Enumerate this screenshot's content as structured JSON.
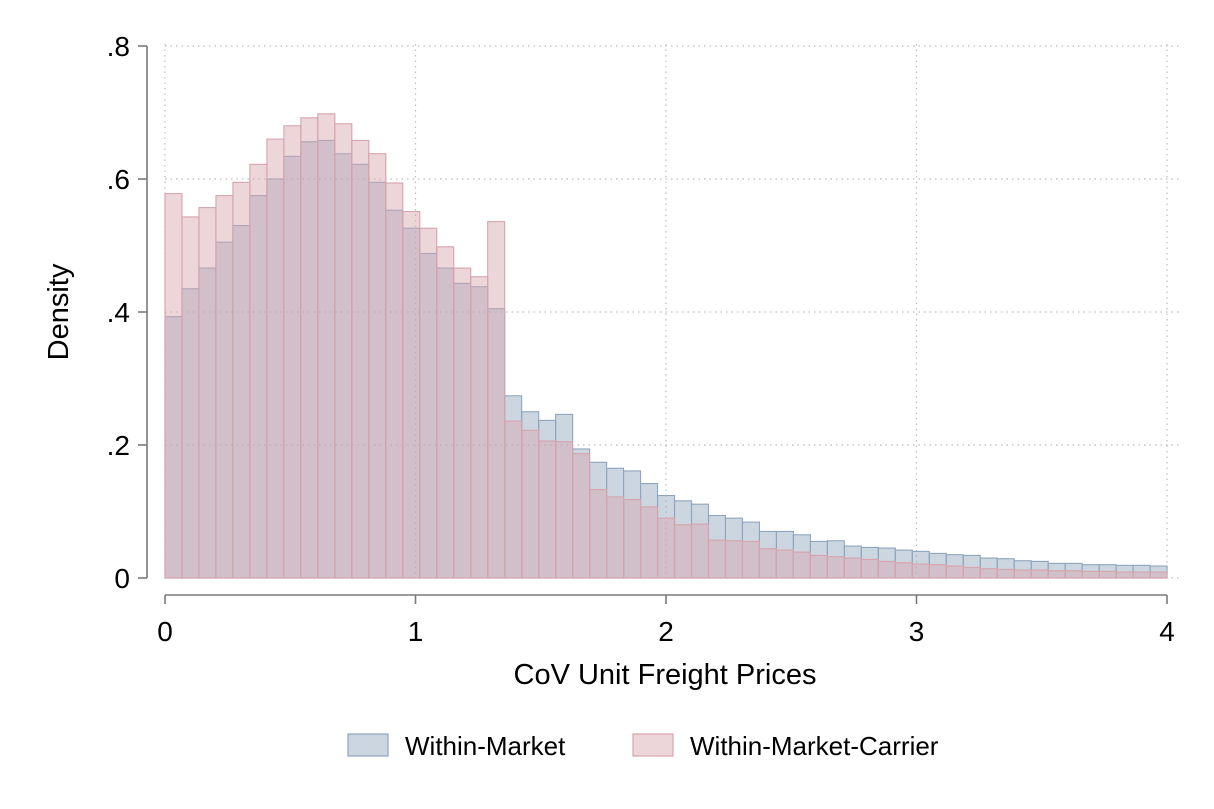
{
  "chart_data": {
    "type": "bar",
    "subtype": "overlaid-histogram",
    "xlabel": "CoV Unit Freight Prices",
    "ylabel": "Density",
    "xlim": [
      0,
      4
    ],
    "ylim": [
      0,
      0.8
    ],
    "x_ticks": [
      0,
      1,
      2,
      3,
      4
    ],
    "x_tick_labels": [
      "0",
      "1",
      "2",
      "3",
      "4"
    ],
    "y_ticks": [
      0,
      0.2,
      0.4,
      0.6,
      0.8
    ],
    "y_tick_labels": [
      "0",
      ".2",
      ".4",
      ".6",
      ".8"
    ],
    "grid": true,
    "legend_position": "bottom",
    "bin_start": 0,
    "bin_width": 0.0678,
    "series": [
      {
        "name": "Within-Market",
        "color": "#8ea5bd",
        "values": [
          0.393,
          0.435,
          0.466,
          0.505,
          0.53,
          0.575,
          0.6,
          0.634,
          0.656,
          0.658,
          0.638,
          0.622,
          0.595,
          0.553,
          0.526,
          0.488,
          0.466,
          0.443,
          0.438,
          0.405,
          0.274,
          0.25,
          0.237,
          0.246,
          0.194,
          0.174,
          0.165,
          0.161,
          0.142,
          0.124,
          0.116,
          0.111,
          0.094,
          0.09,
          0.084,
          0.07,
          0.07,
          0.065,
          0.055,
          0.056,
          0.048,
          0.046,
          0.045,
          0.042,
          0.04,
          0.037,
          0.035,
          0.034,
          0.03,
          0.029,
          0.026,
          0.025,
          0.022,
          0.022,
          0.02,
          0.02,
          0.019,
          0.019,
          0.018
        ]
      },
      {
        "name": "Within-Market-Carrier",
        "color": "#d7a3ac",
        "values": [
          0.578,
          0.543,
          0.557,
          0.575,
          0.595,
          0.622,
          0.66,
          0.68,
          0.692,
          0.698,
          0.683,
          0.658,
          0.638,
          0.594,
          0.551,
          0.526,
          0.498,
          0.466,
          0.453,
          0.536,
          0.236,
          0.222,
          0.206,
          0.205,
          0.187,
          0.133,
          0.122,
          0.118,
          0.107,
          0.09,
          0.08,
          0.081,
          0.057,
          0.056,
          0.055,
          0.044,
          0.042,
          0.039,
          0.034,
          0.032,
          0.03,
          0.028,
          0.025,
          0.023,
          0.021,
          0.02,
          0.018,
          0.016,
          0.014,
          0.013,
          0.012,
          0.012,
          0.011,
          0.011,
          0.01,
          0.01,
          0.009,
          0.009,
          0.009
        ]
      }
    ]
  }
}
